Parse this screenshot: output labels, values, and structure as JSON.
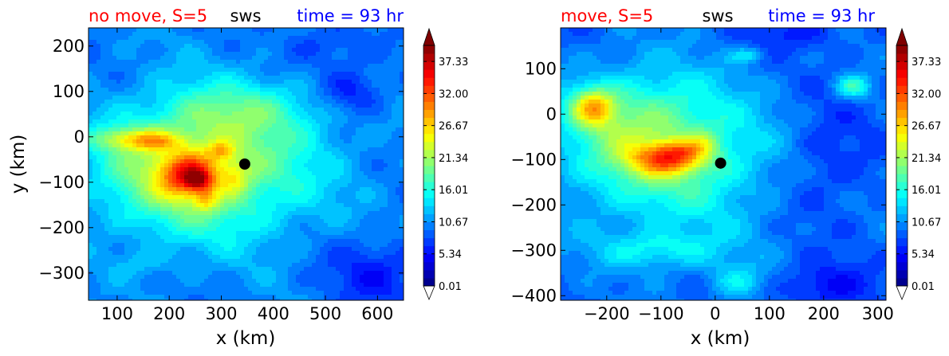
{
  "colors": {
    "title_left": "#ff0000",
    "title_center": "#000000",
    "title_right": "#0000ff",
    "marker": "#000000",
    "jet_stops": [
      "#00007f",
      "#0000ff",
      "#007fff",
      "#00ffff",
      "#7fff7f",
      "#ffff00",
      "#ff7f00",
      "#ff0000",
      "#7f0000"
    ],
    "under_color": "#ffffff",
    "over_color": "#7f0000"
  },
  "colorbar": {
    "min": 0.01,
    "max": 40.0,
    "levels": 30,
    "tick_values": [
      0.01,
      5.34,
      10.67,
      16.01,
      21.34,
      26.67,
      32.0,
      37.33
    ],
    "tick_labels": [
      "0.01",
      "5.34",
      "10.67",
      "16.01",
      "21.34",
      "26.67",
      "32.00",
      "37.33"
    ],
    "extend": "both"
  },
  "chart_data": [
    {
      "type": "heatmap",
      "title_left": "no move, S=5",
      "title_center": "sws",
      "title_right": "time = 93 hr",
      "xlabel": "x (km)",
      "ylabel": "y (km)",
      "xlim": [
        45,
        650
      ],
      "ylim": [
        -360,
        240
      ],
      "xticks": [
        100,
        200,
        300,
        400,
        500,
        600
      ],
      "xtick_labels": [
        "100",
        "200",
        "300",
        "400",
        "500",
        "600"
      ],
      "yticks": [
        200,
        100,
        0,
        -100,
        -200,
        -300
      ],
      "ytick_labels": [
        "200",
        "100",
        "0",
        "−100",
        "−200",
        "−300"
      ],
      "marker": {
        "x": 345,
        "y": -60
      },
      "field": {
        "background": 10,
        "features": [
          {
            "x": 300,
            "y": -60,
            "rx": 200,
            "ry": 160,
            "v": 9
          },
          {
            "x": 200,
            "y": -80,
            "rx": 150,
            "ry": 120,
            "v": 6
          },
          {
            "x": 240,
            "y": -85,
            "rx": 55,
            "ry": 45,
            "v": 13
          },
          {
            "x": 255,
            "y": -95,
            "rx": 22,
            "ry": 20,
            "v": 7
          },
          {
            "x": 120,
            "y": -5,
            "rx": 70,
            "ry": 25,
            "v": 8
          },
          {
            "x": 180,
            "y": -10,
            "rx": 50,
            "ry": 20,
            "v": 5
          },
          {
            "x": 300,
            "y": -30,
            "rx": 25,
            "ry": 20,
            "v": 6
          },
          {
            "x": 270,
            "y": -140,
            "rx": 20,
            "ry": 25,
            "v": 5
          },
          {
            "x": 330,
            "y": -90,
            "rx": 25,
            "ry": 35,
            "v": 4
          },
          {
            "x": 350,
            "y": 60,
            "rx": 150,
            "ry": 60,
            "v": 4
          },
          {
            "x": 550,
            "y": 100,
            "rx": 60,
            "ry": 50,
            "v": -5
          },
          {
            "x": 600,
            "y": -300,
            "rx": 100,
            "ry": 80,
            "v": -4
          },
          {
            "x": 500,
            "y": 200,
            "rx": 80,
            "ry": 50,
            "v": -3
          },
          {
            "x": 150,
            "y": -280,
            "rx": 60,
            "ry": 30,
            "v": 2
          }
        ]
      }
    },
    {
      "type": "heatmap",
      "title_left": "move, S=5",
      "title_center": "sws",
      "title_right": "time = 93 hr",
      "xlabel": "x (km)",
      "ylabel": "",
      "xlim": [
        -285,
        315
      ],
      "ylim": [
        -410,
        190
      ],
      "xticks": [
        -200,
        -100,
        0,
        100,
        200,
        300
      ],
      "xtick_labels": [
        "−200",
        "−100",
        "0",
        "100",
        "200",
        "300"
      ],
      "yticks": [
        100,
        0,
        -100,
        -200,
        -300,
        -400
      ],
      "ytick_labels": [
        "100",
        "0",
        "−100",
        "−200",
        "−300",
        "−400"
      ],
      "marker": {
        "x": 10,
        "y": -108
      },
      "field": {
        "background": 9,
        "features": [
          {
            "x": -80,
            "y": -100,
            "rx": 200,
            "ry": 170,
            "v": 8
          },
          {
            "x": -150,
            "y": -20,
            "rx": 140,
            "ry": 120,
            "v": 6
          },
          {
            "x": -225,
            "y": 15,
            "rx": 40,
            "ry": 40,
            "v": 12
          },
          {
            "x": -90,
            "y": -100,
            "rx": 70,
            "ry": 35,
            "v": 12
          },
          {
            "x": -60,
            "y": -80,
            "rx": 45,
            "ry": 25,
            "v": 5
          },
          {
            "x": -20,
            "y": -60,
            "rx": 30,
            "ry": 25,
            "v": 4
          },
          {
            "x": -100,
            "y": -300,
            "rx": 120,
            "ry": 40,
            "v": 5
          },
          {
            "x": 40,
            "y": -370,
            "rx": 50,
            "ry": 40,
            "v": 5
          },
          {
            "x": 60,
            "y": 130,
            "rx": 30,
            "ry": 15,
            "v": 5
          },
          {
            "x": 255,
            "y": 60,
            "rx": 30,
            "ry": 25,
            "v": 8
          },
          {
            "x": 200,
            "y": -100,
            "rx": 80,
            "ry": 120,
            "v": -3
          },
          {
            "x": 200,
            "y": -380,
            "rx": 80,
            "ry": 50,
            "v": -4
          },
          {
            "x": 150,
            "y": 180,
            "rx": 80,
            "ry": 40,
            "v": -3
          }
        ]
      }
    }
  ]
}
